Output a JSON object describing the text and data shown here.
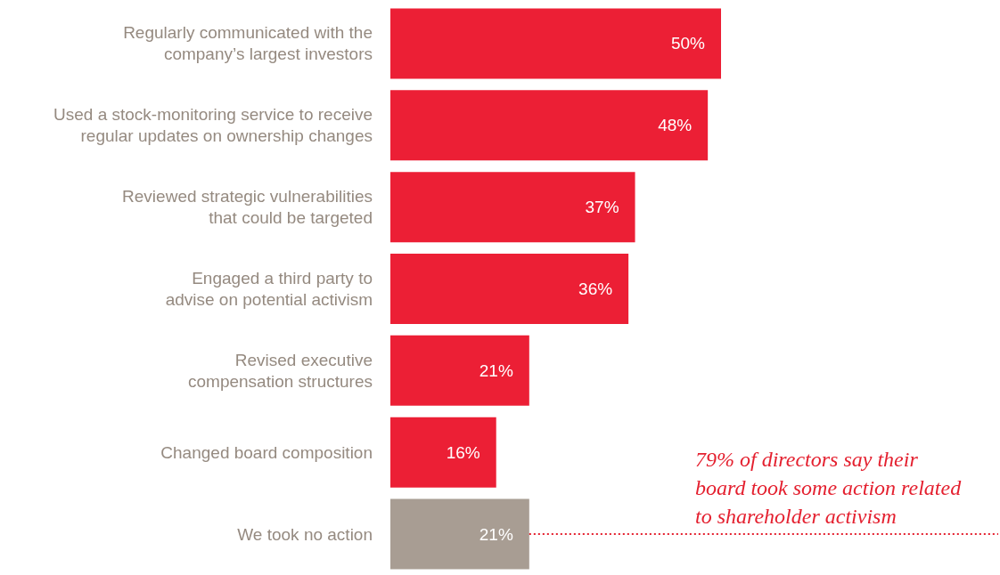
{
  "chart_data": {
    "type": "bar",
    "orientation": "horizontal",
    "categories": [
      "Regularly communicated with the\ncompany’s largest investors",
      "Used a stock-monitoring service to receive\nregular updates on ownership changes",
      "Reviewed strategic vulnerabilities\nthat could be targeted",
      "Engaged a third party to\nadvise on potential activism",
      "Revised executive\ncompensation structures",
      "Changed board composition",
      "We took no action"
    ],
    "values": [
      50,
      48,
      37,
      36,
      21,
      16,
      21
    ],
    "value_labels": [
      "50%",
      "48%",
      "37%",
      "36%",
      "21%",
      "16%",
      "21%"
    ],
    "colors": [
      "#ec1f35",
      "#ec1f35",
      "#ec1f35",
      "#ec1f35",
      "#ec1f35",
      "#ec1f35",
      "#a89d93"
    ],
    "annotations": [
      "79% of directors say their\nboard took some action related\nto shareholder activism"
    ],
    "ref_lines": [
      {
        "axis": "y",
        "value": "We took no action",
        "color": "#e4202f",
        "line_style": "dotted"
      }
    ]
  }
}
